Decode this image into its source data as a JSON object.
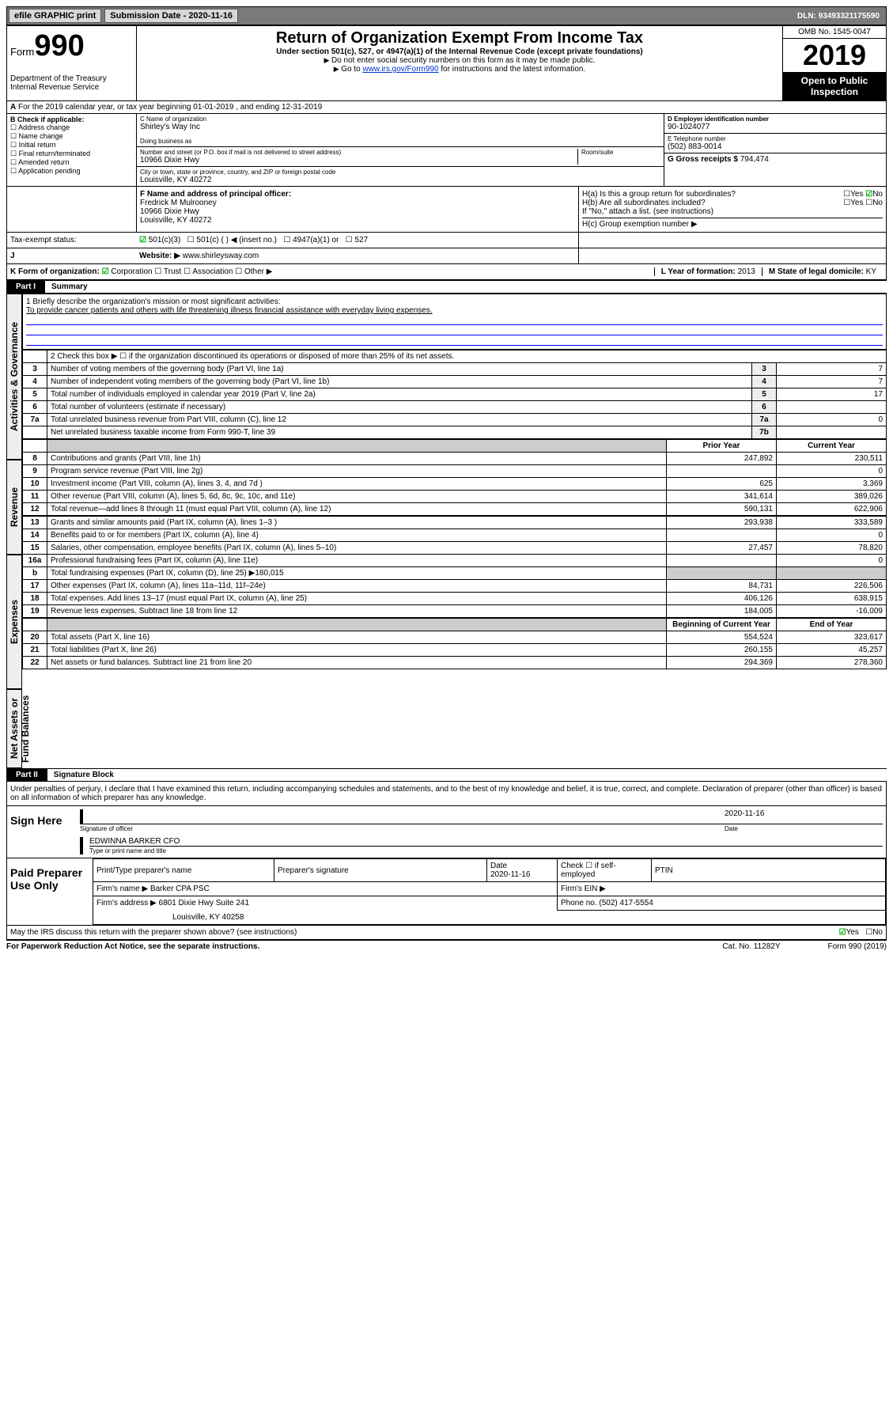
{
  "topbar": {
    "efile": "efile GRAPHIC print",
    "submission_label": "Submission Date - 2020-11-16",
    "dln": "DLN: 93493321175590"
  },
  "header": {
    "form": "Form",
    "form_no": "990",
    "dept1": "Department of the Treasury",
    "dept2": "Internal Revenue Service",
    "title": "Return of Organization Exempt From Income Tax",
    "sub1": "Under section 501(c), 527, or 4947(a)(1) of the Internal Revenue Code (except private foundations)",
    "sub2": "Do not enter social security numbers on this form as it may be made public.",
    "sub3_pre": "Go to ",
    "sub3_link": "www.irs.gov/Form990",
    "sub3_post": " for instructions and the latest information.",
    "omb": "OMB No. 1545-0047",
    "year": "2019",
    "open": "Open to Public Inspection"
  },
  "row_a": {
    "text": "For the 2019 calendar year, or tax year beginning 01-01-2019   , and ending 12-31-2019",
    "prefix": "A"
  },
  "boxB": {
    "title": "B Check if applicable:",
    "items": [
      "Address change",
      "Name change",
      "Initial return",
      "Final return/terminated",
      "Amended return",
      "Application pending"
    ]
  },
  "boxC": {
    "label": "C Name of organization",
    "name": "Shirley's Way Inc",
    "dba_label": "Doing business as",
    "addr_label": "Number and street (or P.O. box if mail is not delivered to street address)",
    "room_label": "Room/suite",
    "addr": "10966 Dixie Hwy",
    "city_label": "City or town, state or province, country, and ZIP or foreign postal code",
    "city": "Louisville, KY  40272"
  },
  "boxD": {
    "label": "D Employer identification number",
    "value": "90-1024077"
  },
  "boxE": {
    "label": "E Telephone number",
    "value": "(502) 883-0014"
  },
  "boxG": {
    "label": "G Gross receipts $",
    "value": "794,474"
  },
  "boxF": {
    "label": "F  Name and address of principal officer:",
    "name": "Fredrick M Mulrooney",
    "addr": "10966 Dixie Hwy",
    "city": "Louisville, KY  40272"
  },
  "boxH": {
    "ha": "H(a)  Is this a group return for subordinates?",
    "ha_no": "No",
    "hb": "H(b)  Are all subordinates included?",
    "hb_note": "If \"No,\" attach a list. (see instructions)",
    "hc": "H(c)  Group exemption number ▶"
  },
  "tax_status": {
    "label": "Tax-exempt status:",
    "c3": "501(c)(3)",
    "c": "501(c) (   ) ◀ (insert no.)",
    "a1": "4947(a)(1) or",
    "527": "527"
  },
  "boxJ": {
    "label": "J",
    "website_label": "Website: ▶",
    "website": "www.shirleysway.com"
  },
  "boxK": {
    "label": "K Form of organization:",
    "corp": "Corporation",
    "trust": "Trust",
    "assoc": "Association",
    "other": "Other ▶"
  },
  "boxL": {
    "label": "L Year of formation:",
    "value": "2013"
  },
  "boxM": {
    "label": "M State of legal domicile:",
    "value": "KY"
  },
  "part1": {
    "num": "Part I",
    "title": "Summary"
  },
  "summary": {
    "vlabel1": "Activities & Governance",
    "vlabel2": "Revenue",
    "vlabel3": "Expenses",
    "vlabel4": "Net Assets or Fund Balances",
    "line1_label": "1  Briefly describe the organization's mission or most significant activities:",
    "line1_text": "To provide cancer patients and others with life threatening illness financial assistance with everyday living expenses.",
    "line2": "2   Check this box ▶ ☐  if the organization discontinued its operations or disposed of more than 25% of its net assets.",
    "lines_ag": [
      {
        "no": "3",
        "desc": "Number of voting members of the governing body (Part VI, line 1a)",
        "rb": "3",
        "val": "7"
      },
      {
        "no": "4",
        "desc": "Number of independent voting members of the governing body (Part VI, line 1b)",
        "rb": "4",
        "val": "7"
      },
      {
        "no": "5",
        "desc": "Total number of individuals employed in calendar year 2019 (Part V, line 2a)",
        "rb": "5",
        "val": "17"
      },
      {
        "no": "6",
        "desc": "Total number of volunteers (estimate if necessary)",
        "rb": "6",
        "val": ""
      },
      {
        "no": "7a",
        "desc": "Total unrelated business revenue from Part VIII, column (C), line 12",
        "rb": "7a",
        "val": "0"
      },
      {
        "no": "",
        "desc": "Net unrelated business taxable income from Form 990-T, line 39",
        "rb": "7b",
        "val": ""
      }
    ],
    "col_prior": "Prior Year",
    "col_current": "Current Year",
    "col_bcy": "Beginning of Current Year",
    "col_eoy": "End of Year",
    "lines_rev": [
      {
        "no": "8",
        "desc": "Contributions and grants (Part VIII, line 1h)",
        "py": "247,892",
        "cy": "230,511"
      },
      {
        "no": "9",
        "desc": "Program service revenue (Part VIII, line 2g)",
        "py": "",
        "cy": "0"
      },
      {
        "no": "10",
        "desc": "Investment income (Part VIII, column (A), lines 3, 4, and 7d )",
        "py": "625",
        "cy": "3,369"
      },
      {
        "no": "11",
        "desc": "Other revenue (Part VIII, column (A), lines 5, 6d, 8c, 9c, 10c, and 11e)",
        "py": "341,614",
        "cy": "389,026"
      },
      {
        "no": "12",
        "desc": "Total revenue—add lines 8 through 11 (must equal Part VIII, column (A), line 12)",
        "py": "590,131",
        "cy": "622,906"
      }
    ],
    "lines_exp": [
      {
        "no": "13",
        "desc": "Grants and similar amounts paid (Part IX, column (A), lines 1–3 )",
        "py": "293,938",
        "cy": "333,589"
      },
      {
        "no": "14",
        "desc": "Benefits paid to or for members (Part IX, column (A), line 4)",
        "py": "",
        "cy": "0"
      },
      {
        "no": "15",
        "desc": "Salaries, other compensation, employee benefits (Part IX, column (A), lines 5–10)",
        "py": "27,457",
        "cy": "78,820"
      },
      {
        "no": "16a",
        "desc": "Professional fundraising fees (Part IX, column (A), line 11e)",
        "py": "",
        "cy": "0"
      },
      {
        "no": "b",
        "desc": "Total fundraising expenses (Part IX, column (D), line 25) ▶180,015",
        "py": "shade",
        "cy": "shade"
      },
      {
        "no": "17",
        "desc": "Other expenses (Part IX, column (A), lines 11a–11d, 11f–24e)",
        "py": "84,731",
        "cy": "226,506"
      },
      {
        "no": "18",
        "desc": "Total expenses. Add lines 13–17 (must equal Part IX, column (A), line 25)",
        "py": "406,126",
        "cy": "638,915"
      },
      {
        "no": "19",
        "desc": "Revenue less expenses. Subtract line 18 from line 12",
        "py": "184,005",
        "cy": "-16,009"
      }
    ],
    "lines_na": [
      {
        "no": "20",
        "desc": "Total assets (Part X, line 16)",
        "py": "554,524",
        "cy": "323,617"
      },
      {
        "no": "21",
        "desc": "Total liabilities (Part X, line 26)",
        "py": "260,155",
        "cy": "45,257"
      },
      {
        "no": "22",
        "desc": "Net assets or fund balances. Subtract line 21 from line 20",
        "py": "294,369",
        "cy": "278,360"
      }
    ]
  },
  "part2": {
    "num": "Part II",
    "title": "Signature Block"
  },
  "perjury": "Under penalties of perjury, I declare that I have examined this return, including accompanying schedules and statements, and to the best of my knowledge and belief, it is true, correct, and complete. Declaration of preparer (other than officer) is based on all information of which preparer has any knowledge.",
  "sign": {
    "here": "Sign Here",
    "sig_officer": "Signature of officer",
    "date": "2020-11-16",
    "date_lbl": "Date",
    "name": "EDWINNA BARKER CFO",
    "name_lbl": "Type or print name and title"
  },
  "paid": {
    "label": "Paid Preparer Use Only",
    "h1": "Print/Type preparer's name",
    "h2": "Preparer's signature",
    "h3": "Date",
    "h3v": "2020-11-16",
    "h4": "Check ☐ if self-employed",
    "h5": "PTIN",
    "firm_name_lbl": "Firm's name    ▶",
    "firm_name": "Barker CPA PSC",
    "firm_ein_lbl": "Firm's EIN ▶",
    "firm_addr_lbl": "Firm's address ▶",
    "firm_addr1": "6801 Dixie Hwy Suite 241",
    "firm_addr2": "Louisville, KY  40258",
    "phone_lbl": "Phone no.",
    "phone": "(502) 417-5554"
  },
  "discuss": {
    "q": "May the IRS discuss this return with the preparer shown above? (see instructions)",
    "yes": "Yes",
    "no": "No"
  },
  "footer": {
    "pra": "For Paperwork Reduction Act Notice, see the separate instructions.",
    "cat": "Cat. No. 11282Y",
    "form": "Form 990 (2019)"
  },
  "colors": {
    "link": "#0033cc",
    "check_green": "#0a9040"
  }
}
